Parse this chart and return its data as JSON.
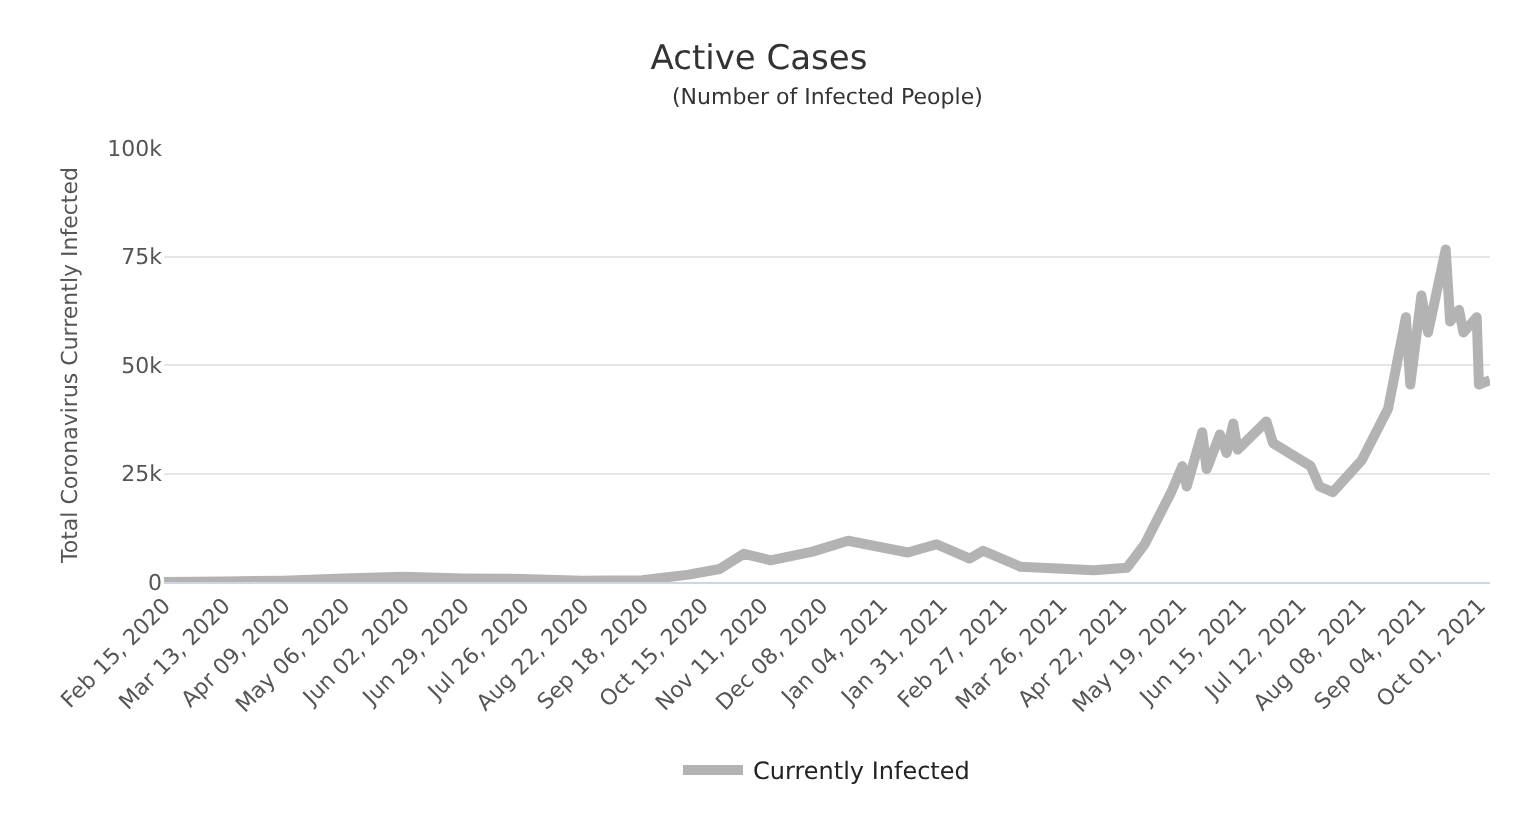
{
  "chart_data": {
    "type": "line",
    "title": "Active Cases",
    "subtitle": "(Number of Infected People)",
    "ylabel": "Total Coronavirus Currently Infected",
    "x": [
      "2020-02-15",
      "2020-03-13",
      "2020-04-09",
      "2020-05-06",
      "2020-06-02",
      "2020-06-29",
      "2020-07-26",
      "2020-08-22",
      "2020-09-18",
      "2020-10-09",
      "2020-10-23",
      "2020-11-03",
      "2020-11-15",
      "2020-12-04",
      "2020-12-20",
      "2021-01-16",
      "2021-01-29",
      "2021-02-13",
      "2021-02-19",
      "2021-03-08",
      "2021-04-10",
      "2021-04-25",
      "2021-05-03",
      "2021-05-15",
      "2021-05-20",
      "2021-05-22",
      "2021-05-29",
      "2021-05-31",
      "2021-06-06",
      "2021-06-09",
      "2021-06-12",
      "2021-06-14",
      "2021-06-27",
      "2021-06-30",
      "2021-07-17",
      "2021-07-21",
      "2021-07-27",
      "2021-08-09",
      "2021-08-21",
      "2021-08-29",
      "2021-08-31",
      "2021-09-05",
      "2021-09-08",
      "2021-09-16",
      "2021-09-18",
      "2021-09-22",
      "2021-09-24",
      "2021-09-30",
      "2021-10-01",
      "2021-10-06"
    ],
    "series": [
      {
        "name": "Currently Infected",
        "color": "#b3b3b3",
        "values": [
          0,
          100,
          300,
          800,
          1200,
          800,
          700,
          300,
          400,
          1700,
          3000,
          6500,
          5000,
          7000,
          9500,
          6800,
          8700,
          5400,
          7200,
          3500,
          2700,
          3300,
          8700,
          20700,
          26700,
          22000,
          34500,
          26000,
          34000,
          29700,
          36500,
          30500,
          37000,
          32000,
          26700,
          22000,
          20700,
          28000,
          40000,
          61000,
          45500,
          66000,
          57500,
          76600,
          60000,
          62700,
          57500,
          61000,
          45500,
          46500
        ]
      }
    ],
    "xlim": [
      "2020-02-15",
      "2021-10-06"
    ],
    "xticks": [
      {
        "value": "2020-02-15",
        "label": "Feb 15, 2020"
      },
      {
        "value": "2020-03-13",
        "label": "Mar 13, 2020"
      },
      {
        "value": "2020-04-09",
        "label": "Apr 09, 2020"
      },
      {
        "value": "2020-05-06",
        "label": "May 06, 2020"
      },
      {
        "value": "2020-06-02",
        "label": "Jun 02, 2020"
      },
      {
        "value": "2020-06-29",
        "label": "Jun 29, 2020"
      },
      {
        "value": "2020-07-26",
        "label": "Jul 26, 2020"
      },
      {
        "value": "2020-08-22",
        "label": "Aug 22, 2020"
      },
      {
        "value": "2020-09-18",
        "label": "Sep 18, 2020"
      },
      {
        "value": "2020-10-15",
        "label": "Oct 15, 2020"
      },
      {
        "value": "2020-11-11",
        "label": "Nov 11, 2020"
      },
      {
        "value": "2020-12-08",
        "label": "Dec 08, 2020"
      },
      {
        "value": "2021-01-04",
        "label": "Jan 04, 2021"
      },
      {
        "value": "2021-01-31",
        "label": "Jan 31, 2021"
      },
      {
        "value": "2021-02-27",
        "label": "Feb 27, 2021"
      },
      {
        "value": "2021-03-26",
        "label": "Mar 26, 2021"
      },
      {
        "value": "2021-04-22",
        "label": "Apr 22, 2021"
      },
      {
        "value": "2021-05-19",
        "label": "May 19, 2021"
      },
      {
        "value": "2021-06-15",
        "label": "Jun 15, 2021"
      },
      {
        "value": "2021-07-12",
        "label": "Jul 12, 2021"
      },
      {
        "value": "2021-08-08",
        "label": "Aug 08, 2021"
      },
      {
        "value": "2021-09-04",
        "label": "Sep 04, 2021"
      },
      {
        "value": "2021-10-01",
        "label": "Oct 01, 2021"
      }
    ],
    "ylim": [
      0,
      100000
    ],
    "yticks": [
      {
        "value": 0,
        "label": "0"
      },
      {
        "value": 25000,
        "label": "25k"
      },
      {
        "value": 50000,
        "label": "50k"
      },
      {
        "value": 75000,
        "label": "75k"
      },
      {
        "value": 100000,
        "label": "100k"
      }
    ],
    "grid": "y",
    "legend": "bottom",
    "marker": "none",
    "line_style": "solid"
  }
}
